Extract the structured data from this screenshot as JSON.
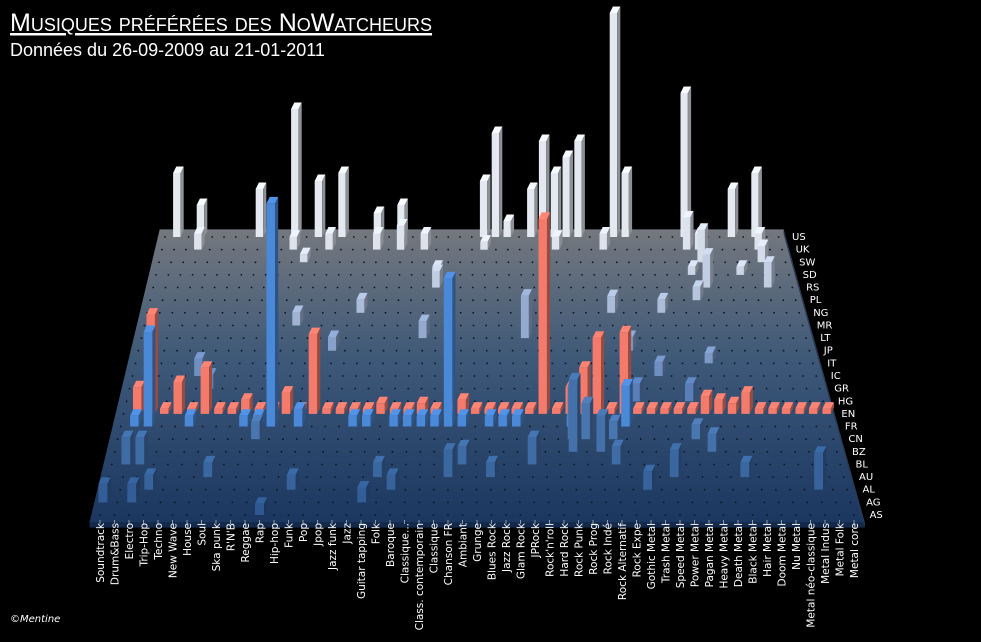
{
  "chart_data": {
    "type": "bar3d",
    "title": "Musiques préférées des NoWatcheurs",
    "subtitle": "Données du 26-09-2009 au 21-01-2011",
    "credit": "©Mentine",
    "categories": [
      "Soundtrack",
      "Drum&Bass",
      "Electro",
      "Trip-Hop",
      "Techno",
      "New Wave",
      "House",
      "Soul",
      "Ska punk",
      "R'N'B",
      "Reggae",
      "Rap",
      "Hip-hop",
      "Funk",
      "Pop",
      "Jpop",
      "Jazz funk",
      "Jazz",
      "Guitar tapping",
      "Folk",
      "Baroque",
      "Classique...",
      "Class. contemporain",
      "Classique",
      "Chanson FR",
      "Ambiant",
      "Grunge",
      "Blues Rock",
      "Jazz Rock",
      "Glam Rock",
      "JPRock",
      "Rock'n'roll",
      "Hard Rock",
      "Rock Punk",
      "Rock Prog",
      "Rock Indé",
      "Rock Alternatif",
      "Rock Expe",
      "Gothic Metal",
      "Trash Metal",
      "Speed Metal",
      "Power Metal",
      "Pagan Metal",
      "Heavy Metal",
      "Death Metal",
      "Black Metal",
      "Hair Metal",
      "Doom Metal",
      "Nu Metal",
      "Metal néo-classique",
      "Metal Indus",
      "Metal Folk",
      "Metal core"
    ],
    "series": [
      {
        "name": "US",
        "color": "#e4e9f1",
        "values": [
          0,
          4,
          0,
          2,
          0,
          0,
          0,
          0,
          3,
          0,
          0,
          8,
          0,
          3.5,
          0,
          4,
          0,
          0,
          1.5,
          0,
          2,
          0,
          0,
          0,
          0,
          0,
          0,
          3.5,
          6.5,
          1,
          0,
          3,
          6,
          4,
          5,
          6,
          0,
          0,
          14,
          4,
          0,
          0,
          0,
          0,
          9,
          0,
          0,
          0,
          3,
          0,
          4,
          0,
          0
        ]
      },
      {
        "name": "UK",
        "color": "#dde3ed",
        "values": [
          0,
          0,
          0,
          1,
          0,
          0,
          0,
          0,
          0,
          0,
          0,
          0.8,
          0,
          0,
          1,
          0,
          0,
          0,
          1,
          0,
          1.5,
          0,
          1,
          0,
          0,
          0,
          0,
          0.5,
          0,
          0,
          0,
          0,
          0,
          0.8,
          0,
          0,
          0,
          1,
          0,
          0,
          0,
          0,
          0,
          0,
          2,
          1,
          0,
          0,
          0,
          0,
          1,
          0,
          0
        ]
      },
      {
        "name": "SW",
        "color": "#d4dce9",
        "values": [
          0,
          0,
          0,
          0,
          0,
          0,
          0,
          0,
          0,
          0,
          0,
          0,
          0.5,
          0,
          0,
          0,
          0,
          0,
          0,
          0,
          0,
          0,
          0,
          0,
          0,
          0,
          0,
          0,
          0,
          0,
          0,
          0,
          0,
          0,
          0,
          0,
          0,
          0,
          0,
          0,
          0,
          0,
          0,
          0,
          0,
          2,
          0,
          0,
          0,
          0,
          1,
          0,
          0
        ]
      },
      {
        "name": "SD",
        "color": "#cbd5e5",
        "values": [
          0,
          0,
          0,
          0,
          0,
          0,
          0,
          0,
          0,
          0,
          0,
          0,
          0,
          0,
          0,
          0,
          0,
          0,
          0,
          0,
          0,
          0,
          0,
          0.5,
          0,
          0,
          0,
          0,
          0,
          0,
          0,
          0,
          0,
          0,
          0,
          0,
          0,
          0,
          0,
          0,
          0,
          0,
          0,
          0,
          0.5,
          0,
          0,
          0,
          0.5,
          0,
          0,
          0,
          0
        ]
      },
      {
        "name": "RS",
        "color": "#c1cde1",
        "values": [
          0,
          0,
          0,
          0,
          0,
          0,
          0,
          0,
          0,
          0,
          0,
          0,
          0,
          0,
          0,
          0,
          0,
          0,
          0,
          0,
          0,
          0,
          0,
          1,
          0,
          0,
          0,
          0,
          0,
          0,
          0,
          0,
          0,
          0,
          0,
          0,
          0,
          0,
          0,
          0,
          0,
          0,
          0,
          0,
          0,
          2,
          0,
          0,
          0,
          0,
          1.5,
          0,
          0
        ]
      },
      {
        "name": "PL",
        "color": "#b6c5dc",
        "values": [
          0,
          0,
          0,
          0,
          0,
          0,
          0,
          0,
          0,
          0,
          0,
          0,
          0,
          0,
          0,
          0,
          0,
          0,
          0,
          0,
          0,
          0,
          0,
          0,
          0,
          0,
          0,
          0,
          0,
          0,
          0,
          0,
          0,
          0,
          0,
          0,
          0,
          0,
          0,
          0,
          0,
          0,
          0,
          0,
          0.8,
          0,
          0,
          0,
          0,
          0,
          0,
          0,
          0
        ]
      },
      {
        "name": "NG",
        "color": "#abbcd8",
        "values": [
          0,
          0,
          0,
          0,
          0,
          0,
          0,
          0,
          0,
          0,
          0,
          0,
          0,
          0,
          0,
          0,
          0,
          0.8,
          0,
          0,
          0,
          0,
          0,
          0,
          0,
          0,
          0,
          0,
          0,
          0,
          0,
          0,
          0,
          0,
          0,
          0,
          0,
          1,
          0,
          0,
          0,
          0.8,
          0,
          0,
          0,
          0,
          0,
          0,
          0,
          0,
          0,
          0,
          0
        ]
      },
      {
        "name": "MR",
        "color": "#a0b3d3",
        "values": [
          0,
          0,
          0,
          0,
          0,
          0,
          0,
          0,
          0,
          0,
          0,
          0,
          0.8,
          0,
          0,
          0,
          0,
          0,
          0,
          0,
          0,
          0,
          0,
          0,
          0,
          0,
          0,
          0,
          0,
          0,
          0,
          0,
          0,
          0,
          0,
          0,
          0,
          0,
          0,
          0,
          0,
          0,
          0,
          0,
          0,
          0,
          0,
          0,
          0,
          0,
          0,
          0,
          0
        ]
      },
      {
        "name": "LT",
        "color": "#94aace",
        "values": [
          0,
          0,
          0,
          0,
          0,
          0,
          0,
          0,
          0,
          0,
          0,
          0,
          0,
          0,
          0,
          0,
          0,
          0,
          0,
          0,
          0,
          0,
          1,
          0,
          0,
          0,
          0,
          0,
          0,
          0,
          2.5,
          0,
          0,
          0,
          0,
          0,
          0,
          0,
          0,
          0,
          0,
          0,
          0,
          0,
          0,
          0,
          0,
          0,
          0,
          0,
          0,
          0,
          0
        ]
      },
      {
        "name": "JP",
        "color": "#88a1ca",
        "values": [
          0,
          0,
          0,
          0,
          0,
          0,
          0,
          0,
          0,
          0,
          0,
          0,
          0,
          0,
          0,
          0.8,
          0,
          0,
          0,
          0,
          0,
          0,
          0,
          0,
          0,
          0,
          0,
          0,
          0,
          0,
          0,
          0,
          0,
          0,
          0,
          0,
          0,
          0,
          0.8,
          0,
          0,
          0,
          0,
          0,
          0,
          0,
          0,
          0,
          0,
          0,
          0,
          0,
          0
        ]
      },
      {
        "name": "IT",
        "color": "#7c98c5",
        "values": [
          0,
          0,
          0,
          0,
          0,
          0,
          0,
          0,
          0,
          0,
          0,
          0,
          0,
          0,
          0,
          0,
          0,
          0,
          0,
          0,
          0,
          0,
          0,
          0,
          0,
          0,
          0,
          0,
          0,
          0,
          0,
          0,
          0,
          0,
          0,
          0,
          0,
          0,
          0,
          0,
          0,
          0,
          0,
          0,
          0.6,
          0,
          0,
          0,
          0,
          0,
          0,
          0,
          0
        ]
      },
      {
        "name": "IC",
        "color": "#708fc1",
        "values": [
          0,
          0,
          0,
          0,
          0,
          1,
          0,
          0,
          0,
          0,
          0,
          0,
          0,
          0,
          0,
          0,
          0,
          0,
          0,
          0,
          0,
          0,
          0,
          0,
          0,
          0,
          0,
          0,
          0,
          0,
          0,
          0,
          0,
          0,
          0,
          0,
          0,
          0,
          0,
          0,
          0.8,
          0,
          0,
          0,
          0,
          0,
          0,
          0,
          0,
          0,
          0,
          0,
          0
        ]
      },
      {
        "name": "GR",
        "color": "#6586bc",
        "values": [
          0,
          0,
          0,
          0,
          0,
          0,
          0.8,
          0,
          0,
          0,
          0,
          0,
          0,
          0,
          0,
          0,
          0,
          0,
          0,
          0,
          0,
          0,
          0,
          0,
          0,
          0,
          0,
          0,
          0,
          0,
          0,
          0,
          0,
          0,
          0,
          0,
          0,
          0,
          0,
          0,
          0,
          0,
          0,
          0,
          0,
          0,
          0,
          0,
          0,
          0,
          0,
          0,
          0
        ]
      },
      {
        "name": "HG",
        "color": "#5a7eb8",
        "values": [
          0,
          0,
          0,
          0,
          0,
          0,
          0,
          0,
          0,
          0,
          0,
          0,
          0,
          0,
          0,
          0,
          0,
          0,
          0,
          0,
          0,
          0,
          0,
          0,
          0,
          0,
          0,
          0,
          0,
          0,
          0,
          0,
          0,
          0,
          0,
          0,
          0,
          0,
          1,
          0,
          0,
          0,
          1,
          0,
          0,
          0,
          0,
          0,
          0,
          0,
          0,
          0,
          0
        ]
      },
      {
        "name": "EN",
        "color": "#f47a6b",
        "values": [
          0,
          1.5,
          5.6,
          0.3,
          1.8,
          0.3,
          2.6,
          0.3,
          0.3,
          0.8,
          0.3,
          0.3,
          1.2,
          0.3,
          4.5,
          0.3,
          0.3,
          0.3,
          0.3,
          0.6,
          0.3,
          0.3,
          0.6,
          0.3,
          0.3,
          0.8,
          0.3,
          0.3,
          0.3,
          0.3,
          0.3,
          11,
          0.3,
          1.5,
          2.6,
          4.3,
          0.3,
          4.6,
          0.3,
          0.3,
          0.3,
          0.3,
          0.3,
          1,
          0.8,
          0.6,
          1.2,
          0.3,
          0.3,
          0.3,
          0.3,
          0.3,
          0.3
        ]
      },
      {
        "name": "FR",
        "color": "#4a88d8",
        "values": [
          0,
          0.6,
          5.3,
          0,
          0,
          0.6,
          0,
          0,
          0,
          0.6,
          0.6,
          12.5,
          0,
          1,
          0,
          0,
          0,
          0.6,
          0.6,
          0,
          0.6,
          0.6,
          0.6,
          0.6,
          8.3,
          0.6,
          0,
          0.6,
          0.6,
          0.6,
          0,
          0,
          0,
          0.6,
          0,
          0,
          0,
          2.3,
          0,
          0,
          0,
          0,
          0,
          0,
          0,
          0,
          0,
          0,
          0,
          0,
          0,
          0,
          0
        ]
      },
      {
        "name": "CN",
        "color": "#4a76b0",
        "values": [
          0,
          0,
          0,
          0,
          0,
          0,
          0,
          0,
          0,
          0,
          1,
          0,
          0,
          0,
          0,
          0,
          0,
          0,
          0,
          0,
          0,
          0,
          0,
          0,
          0,
          0,
          0,
          0,
          0,
          0,
          0,
          0,
          0,
          3,
          2,
          0,
          1,
          0,
          0,
          0,
          0,
          0,
          0.8,
          0,
          0,
          0,
          0,
          0,
          0,
          0,
          0,
          0,
          0
        ]
      },
      {
        "name": "BZ",
        "color": "#4571ab",
        "values": [
          0,
          0,
          0,
          0,
          0,
          0,
          0,
          0,
          0,
          0,
          0,
          0,
          0,
          0,
          0,
          0,
          0,
          0,
          0,
          0,
          0,
          0,
          0,
          0,
          0,
          0,
          0,
          0,
          0,
          0,
          0,
          0,
          0,
          4,
          0,
          2,
          0,
          0,
          0,
          0,
          0,
          0,
          0,
          1,
          0,
          0,
          0,
          0,
          0,
          0,
          0,
          0,
          0
        ]
      },
      {
        "name": "BL",
        "color": "#406ca6",
        "values": [
          0,
          1.5,
          1.5,
          0,
          0,
          0,
          0,
          0,
          0,
          0,
          0,
          0,
          0,
          0,
          0,
          0,
          0,
          0,
          0,
          0,
          0,
          0,
          0,
          0,
          0,
          1,
          0,
          0,
          0,
          0,
          1.5,
          0,
          0,
          0,
          0,
          0,
          1,
          0,
          0,
          0,
          0,
          0,
          0,
          0,
          0,
          0,
          0,
          0,
          0,
          0,
          0,
          0,
          0
        ]
      },
      {
        "name": "AU",
        "color": "#3b67a1",
        "values": [
          0,
          0,
          0,
          0,
          0,
          0,
          0,
          0.8,
          0,
          0,
          0,
          0,
          0,
          0,
          0,
          0,
          0,
          0,
          0,
          0.8,
          0,
          0,
          0,
          0,
          1.5,
          0,
          0,
          0.8,
          0,
          0,
          0,
          0,
          0,
          0,
          0,
          0,
          0,
          0,
          0,
          0,
          1.5,
          0,
          0,
          0,
          0,
          0.8,
          0,
          0,
          0,
          0,
          0,
          0,
          0
        ]
      },
      {
        "name": "AL",
        "color": "#37629c",
        "values": [
          0,
          0,
          0,
          0.8,
          0,
          0,
          0,
          0,
          0,
          0,
          0,
          0,
          0,
          0.8,
          0,
          0,
          0,
          0,
          0,
          0,
          0.8,
          0,
          0,
          0,
          0,
          0,
          0,
          0,
          0,
          0,
          0,
          0,
          0,
          0,
          0,
          0,
          0,
          0,
          1,
          0,
          0,
          0,
          0,
          0,
          0,
          0,
          0,
          0,
          0,
          0,
          2,
          0,
          0
        ]
      },
      {
        "name": "AG",
        "color": "#335d97",
        "values": [
          1,
          0,
          1,
          0,
          0,
          0,
          0,
          0,
          0,
          0,
          0,
          0,
          0,
          0,
          0,
          0,
          0,
          0,
          0.8,
          0,
          0,
          0,
          0,
          0,
          0,
          0,
          0,
          0,
          0,
          0,
          0,
          0,
          0,
          0,
          0,
          0,
          0,
          0,
          0,
          0,
          0,
          0,
          0,
          0,
          0,
          0,
          0,
          0,
          0,
          0,
          0,
          0,
          0
        ]
      },
      {
        "name": "AS",
        "color": "#2f5892",
        "values": [
          0,
          0,
          0,
          0,
          0,
          0,
          0,
          0,
          0,
          0,
          0,
          0.6,
          0,
          0,
          0,
          0,
          0,
          0,
          0,
          0,
          0,
          0,
          0,
          0,
          0,
          0,
          0,
          0,
          0,
          0,
          0,
          0,
          0,
          0,
          0,
          0,
          0,
          0,
          0,
          0,
          0,
          0,
          0,
          0,
          0,
          0,
          0,
          0,
          0,
          0,
          0,
          0,
          0
        ]
      }
    ]
  }
}
